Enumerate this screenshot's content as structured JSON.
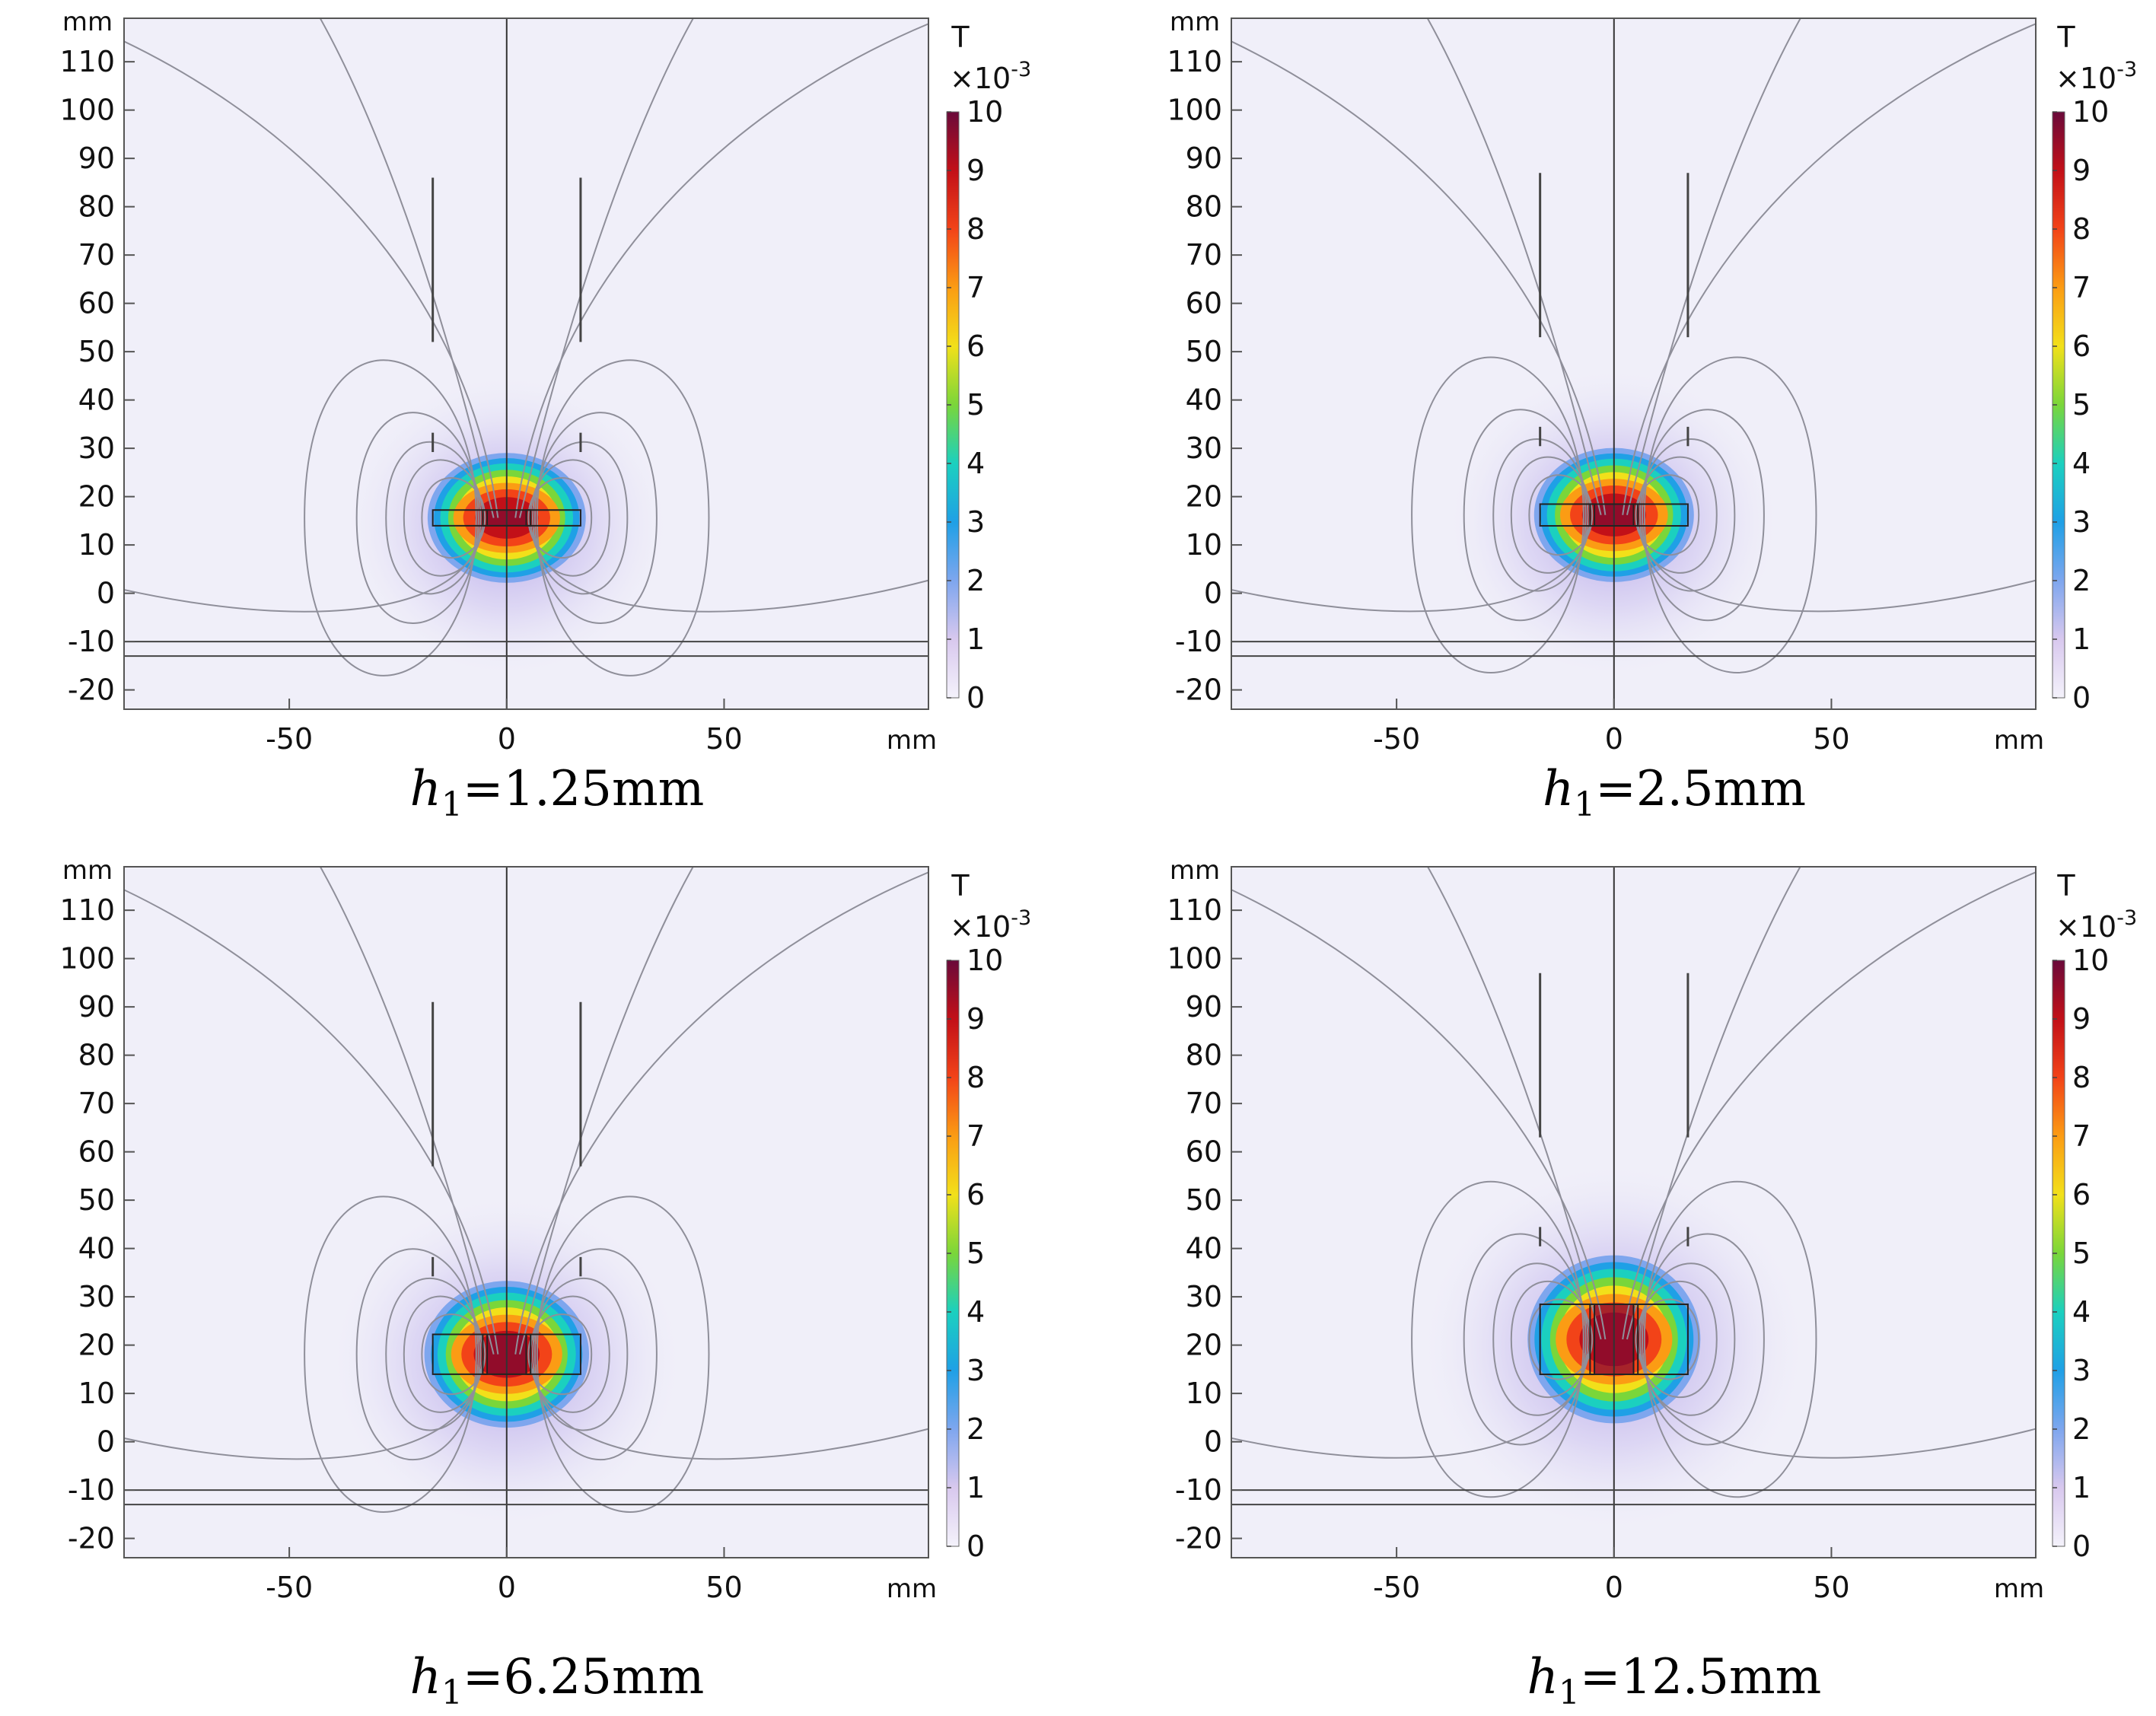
{
  "chart_data": [
    {
      "type": "heatmap",
      "panel": "top-left",
      "caption": {
        "var": "h",
        "sub": "1",
        "rest": "=1.25mm"
      },
      "h1_mm": 1.25,
      "x_unit": "mm",
      "y_unit": "mm",
      "xlim": [
        -88,
        97
      ],
      "ylim": [
        -24,
        119
      ],
      "x_ticks": [
        -50,
        0,
        50
      ],
      "y_ticks": [
        110,
        100,
        90,
        80,
        70,
        60,
        50,
        40,
        30,
        20,
        10,
        0,
        -10,
        -20
      ],
      "colorbar": {
        "unit": "T",
        "scale": "×10",
        "scale_exp": "-3",
        "range": [
          0,
          10
        ],
        "ticks": [
          10,
          9,
          8,
          7,
          6,
          5,
          4,
          3,
          2,
          1,
          0
        ]
      },
      "coil": {
        "center_y": 15.6,
        "outer_x": 17,
        "inner_x": 4.5
      },
      "vertical_bars": {
        "x": [
          -17,
          17
        ],
        "y_range": [
          52,
          86
        ]
      },
      "horizontal_lines_y": [
        -10,
        -13
      ]
    },
    {
      "type": "heatmap",
      "panel": "top-right",
      "caption": {
        "var": "h",
        "sub": "1",
        "rest": "=2.5mm"
      },
      "h1_mm": 2.5,
      "x_unit": "mm",
      "y_unit": "mm",
      "xlim": [
        -88,
        97
      ],
      "ylim": [
        -24,
        119
      ],
      "x_ticks": [
        -50,
        0,
        50
      ],
      "y_ticks": [
        110,
        100,
        90,
        80,
        70,
        60,
        50,
        40,
        30,
        20,
        10,
        0,
        -10,
        -20
      ],
      "colorbar": {
        "unit": "T",
        "scale": "×10",
        "scale_exp": "-3",
        "range": [
          0,
          10
        ],
        "ticks": [
          10,
          9,
          8,
          7,
          6,
          5,
          4,
          3,
          2,
          1,
          0
        ]
      },
      "coil": {
        "center_y": 16.2,
        "outer_x": 17,
        "inner_x": 4.5
      },
      "vertical_bars": {
        "x": [
          -17,
          17
        ],
        "y_range": [
          53,
          87
        ]
      },
      "horizontal_lines_y": [
        -10,
        -13
      ]
    },
    {
      "type": "heatmap",
      "panel": "bottom-left",
      "caption": {
        "var": "h",
        "sub": "1",
        "rest": "=6.25mm"
      },
      "h1_mm": 6.25,
      "x_unit": "mm",
      "y_unit": "mm",
      "xlim": [
        -88,
        97
      ],
      "ylim": [
        -24,
        119
      ],
      "x_ticks": [
        -50,
        0,
        50
      ],
      "y_ticks": [
        110,
        100,
        90,
        80,
        70,
        60,
        50,
        40,
        30,
        20,
        10,
        0,
        -10,
        -20
      ],
      "colorbar": {
        "unit": "T",
        "scale": "×10",
        "scale_exp": "-3",
        "range": [
          0,
          10
        ],
        "ticks": [
          10,
          9,
          8,
          7,
          6,
          5,
          4,
          3,
          2,
          1,
          0
        ]
      },
      "coil": {
        "center_y": 18.1,
        "outer_x": 17,
        "inner_x": 4.5
      },
      "vertical_bars": {
        "x": [
          -17,
          17
        ],
        "y_range": [
          57,
          91
        ]
      },
      "horizontal_lines_y": [
        -10,
        -13
      ]
    },
    {
      "type": "heatmap",
      "panel": "bottom-right",
      "caption": {
        "var": "h",
        "sub": "1",
        "rest": "=12.5mm"
      },
      "h1_mm": 12.5,
      "x_unit": "mm",
      "y_unit": "mm",
      "xlim": [
        -88,
        97
      ],
      "ylim": [
        -24,
        119
      ],
      "x_ticks": [
        -50,
        0,
        50
      ],
      "y_ticks": [
        110,
        100,
        90,
        80,
        70,
        60,
        50,
        40,
        30,
        20,
        10,
        0,
        -10,
        -20
      ],
      "colorbar": {
        "unit": "T",
        "scale": "×10",
        "scale_exp": "-3",
        "range": [
          0,
          10
        ],
        "ticks": [
          10,
          9,
          8,
          7,
          6,
          5,
          4,
          3,
          2,
          1,
          0
        ]
      },
      "coil": {
        "center_y": 21.2,
        "outer_x": 17,
        "inner_x": 4.5
      },
      "vertical_bars": {
        "x": [
          -17,
          17
        ],
        "y_range": [
          63,
          97
        ]
      },
      "horizontal_lines_y": [
        -10,
        -13
      ]
    }
  ],
  "colormap": [
    "#f4f2fb",
    "#d8c8ee",
    "#7ea6ee",
    "#1fa0e6",
    "#1bd0bf",
    "#7ad63a",
    "#f2e01a",
    "#fb9c14",
    "#f24318",
    "#c21018",
    "#6a0a3a"
  ]
}
